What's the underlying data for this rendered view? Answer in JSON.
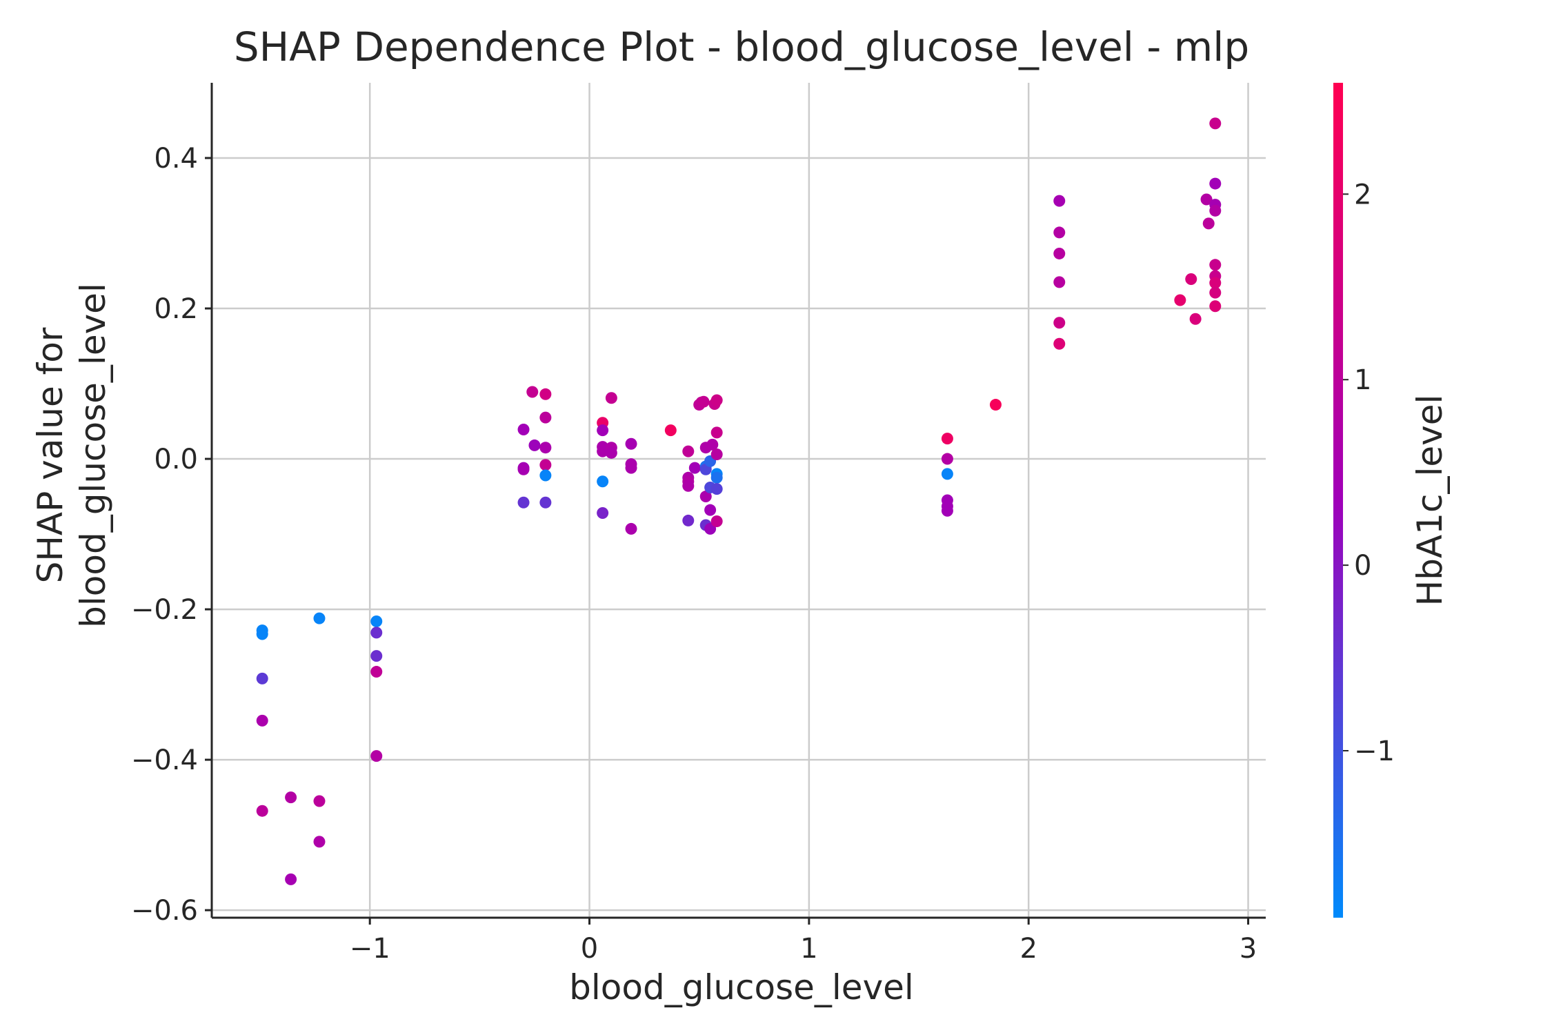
{
  "chart_data": {
    "type": "scatter",
    "title": "SHAP Dependence Plot - blood_glucose_level - mlp",
    "xlabel": "blood_glucose_level",
    "ylabel_lines": [
      "SHAP value for",
      "blood_glucose_level"
    ],
    "colorbar_label": "HbA1c_level",
    "xlim": [
      -1.72,
      3.08
    ],
    "ylim": [
      -0.61,
      0.5
    ],
    "xticks": [
      -1,
      0,
      1,
      2,
      3
    ],
    "xtick_labels": [
      "−1",
      "0",
      "1",
      "2",
      "3"
    ],
    "yticks": [
      -0.6,
      -0.4,
      -0.2,
      0.0,
      0.2,
      0.4
    ],
    "ytick_labels": [
      "−0.6",
      "−0.4",
      "−0.2",
      "0.0",
      "0.2",
      "0.4"
    ],
    "grid": true,
    "colorbar": {
      "range": [
        -1.9,
        2.6
      ],
      "ticks": [
        -1,
        0,
        1,
        2
      ],
      "tick_labels": [
        "−1",
        "0",
        "1",
        "2"
      ],
      "color_low": "#008afb",
      "color_mid": "#a000b9",
      "color_high": "#ff0051"
    },
    "points": [
      {
        "x": -1.49,
        "y": -0.228,
        "c": -1.8
      },
      {
        "x": -1.49,
        "y": -0.233,
        "c": -1.8
      },
      {
        "x": -1.49,
        "y": -0.292,
        "c": -0.6
      },
      {
        "x": -1.49,
        "y": -0.348,
        "c": 0.6
      },
      {
        "x": -1.49,
        "y": -0.468,
        "c": 1.0
      },
      {
        "x": -1.36,
        "y": -0.45,
        "c": 0.8
      },
      {
        "x": -1.36,
        "y": -0.559,
        "c": 0.5
      },
      {
        "x": -1.23,
        "y": -0.212,
        "c": -1.8
      },
      {
        "x": -1.23,
        "y": -0.455,
        "c": 1.0
      },
      {
        "x": -1.23,
        "y": -0.509,
        "c": 0.7
      },
      {
        "x": -0.97,
        "y": -0.216,
        "c": -1.8
      },
      {
        "x": -0.97,
        "y": -0.231,
        "c": -0.4
      },
      {
        "x": -0.97,
        "y": -0.262,
        "c": -0.4
      },
      {
        "x": -0.97,
        "y": -0.283,
        "c": 1.1
      },
      {
        "x": -0.97,
        "y": -0.395,
        "c": 0.8
      },
      {
        "x": -0.3,
        "y": 0.039,
        "c": 0.4
      },
      {
        "x": -0.3,
        "y": -0.012,
        "c": 0.4
      },
      {
        "x": -0.3,
        "y": -0.014,
        "c": 0.5
      },
      {
        "x": -0.3,
        "y": -0.058,
        "c": -0.5
      },
      {
        "x": -0.26,
        "y": 0.089,
        "c": 1.2
      },
      {
        "x": -0.25,
        "y": 0.018,
        "c": 0.3
      },
      {
        "x": -0.2,
        "y": 0.086,
        "c": 1.5
      },
      {
        "x": -0.2,
        "y": 0.055,
        "c": 1.0
      },
      {
        "x": -0.2,
        "y": 0.015,
        "c": 0.6
      },
      {
        "x": -0.2,
        "y": -0.008,
        "c": 1.2
      },
      {
        "x": -0.2,
        "y": -0.022,
        "c": -1.8
      },
      {
        "x": -0.2,
        "y": -0.058,
        "c": -0.5
      },
      {
        "x": 0.06,
        "y": 0.048,
        "c": 2.1
      },
      {
        "x": 0.06,
        "y": 0.038,
        "c": 0.4
      },
      {
        "x": 0.06,
        "y": 0.016,
        "c": 0.6
      },
      {
        "x": 0.06,
        "y": 0.01,
        "c": 0.6
      },
      {
        "x": 0.06,
        "y": -0.03,
        "c": -1.8
      },
      {
        "x": 0.06,
        "y": -0.072,
        "c": -0.2
      },
      {
        "x": 0.1,
        "y": 0.081,
        "c": 1.2
      },
      {
        "x": 0.1,
        "y": 0.015,
        "c": 0.7
      },
      {
        "x": 0.1,
        "y": 0.008,
        "c": 0.6
      },
      {
        "x": 0.19,
        "y": 0.02,
        "c": 0.5
      },
      {
        "x": 0.19,
        "y": -0.007,
        "c": 0.6
      },
      {
        "x": 0.19,
        "y": -0.012,
        "c": 0.6
      },
      {
        "x": 0.19,
        "y": -0.093,
        "c": 0.6
      },
      {
        "x": 0.37,
        "y": 0.038,
        "c": 2.3
      },
      {
        "x": 0.45,
        "y": 0.01,
        "c": 1.1
      },
      {
        "x": 0.45,
        "y": -0.025,
        "c": 0.7
      },
      {
        "x": 0.45,
        "y": -0.03,
        "c": 0.8
      },
      {
        "x": 0.45,
        "y": -0.036,
        "c": 0.7
      },
      {
        "x": 0.45,
        "y": -0.082,
        "c": -0.3
      },
      {
        "x": 0.48,
        "y": -0.012,
        "c": 0.4
      },
      {
        "x": 0.5,
        "y": 0.072,
        "c": 1.1
      },
      {
        "x": 0.51,
        "y": 0.075,
        "c": 1.1
      },
      {
        "x": 0.52,
        "y": 0.076,
        "c": 1.2
      },
      {
        "x": 0.53,
        "y": 0.015,
        "c": 0.7
      },
      {
        "x": 0.53,
        "y": -0.01,
        "c": -1.5
      },
      {
        "x": 0.53,
        "y": -0.014,
        "c": -0.8
      },
      {
        "x": 0.53,
        "y": -0.05,
        "c": 0.6
      },
      {
        "x": 0.53,
        "y": -0.088,
        "c": -0.4
      },
      {
        "x": 0.55,
        "y": -0.003,
        "c": -1.3
      },
      {
        "x": 0.55,
        "y": -0.038,
        "c": -0.8
      },
      {
        "x": 0.55,
        "y": -0.068,
        "c": 0.4
      },
      {
        "x": 0.55,
        "y": -0.093,
        "c": 0.3
      },
      {
        "x": 0.56,
        "y": 0.019,
        "c": 0.7
      },
      {
        "x": 0.57,
        "y": 0.073,
        "c": 1.3
      },
      {
        "x": 0.58,
        "y": 0.078,
        "c": 1.4
      },
      {
        "x": 0.58,
        "y": 0.035,
        "c": 1.3
      },
      {
        "x": 0.58,
        "y": 0.006,
        "c": 0.9
      },
      {
        "x": 0.58,
        "y": -0.02,
        "c": -1.8
      },
      {
        "x": 0.58,
        "y": -0.025,
        "c": -1.5
      },
      {
        "x": 0.58,
        "y": -0.04,
        "c": -0.7
      },
      {
        "x": 0.58,
        "y": -0.083,
        "c": 1.2
      },
      {
        "x": 1.63,
        "y": 0.027,
        "c": 2.2
      },
      {
        "x": 1.63,
        "y": 0.0,
        "c": 0.8
      },
      {
        "x": 1.63,
        "y": -0.02,
        "c": -1.8
      },
      {
        "x": 1.63,
        "y": -0.055,
        "c": 0.4
      },
      {
        "x": 1.63,
        "y": -0.063,
        "c": 0.4
      },
      {
        "x": 1.63,
        "y": -0.069,
        "c": 0.4
      },
      {
        "x": 1.85,
        "y": 0.072,
        "c": 2.4
      },
      {
        "x": 2.14,
        "y": 0.343,
        "c": 0.5
      },
      {
        "x": 2.14,
        "y": 0.301,
        "c": 0.8
      },
      {
        "x": 2.14,
        "y": 0.273,
        "c": 0.9
      },
      {
        "x": 2.14,
        "y": 0.235,
        "c": 0.9
      },
      {
        "x": 2.14,
        "y": 0.181,
        "c": 1.4
      },
      {
        "x": 2.14,
        "y": 0.153,
        "c": 1.8
      },
      {
        "x": 2.69,
        "y": 0.211,
        "c": 2.0
      },
      {
        "x": 2.74,
        "y": 0.239,
        "c": 1.7
      },
      {
        "x": 2.76,
        "y": 0.186,
        "c": 1.7
      },
      {
        "x": 2.81,
        "y": 0.345,
        "c": 0.8
      },
      {
        "x": 2.82,
        "y": 0.313,
        "c": 1.0
      },
      {
        "x": 2.85,
        "y": 0.446,
        "c": 1.3
      },
      {
        "x": 2.85,
        "y": 0.366,
        "c": 0.4
      },
      {
        "x": 2.85,
        "y": 0.338,
        "c": 0.5
      },
      {
        "x": 2.85,
        "y": 0.33,
        "c": 0.8
      },
      {
        "x": 2.85,
        "y": 0.258,
        "c": 1.3
      },
      {
        "x": 2.85,
        "y": 0.243,
        "c": 1.3
      },
      {
        "x": 2.85,
        "y": 0.234,
        "c": 1.7
      },
      {
        "x": 2.85,
        "y": 0.221,
        "c": 1.6
      },
      {
        "x": 2.85,
        "y": 0.203,
        "c": 1.8
      }
    ]
  }
}
